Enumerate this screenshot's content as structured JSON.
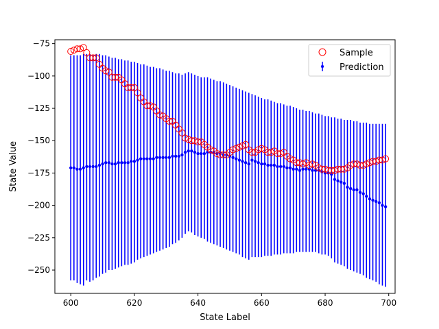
{
  "chart_data": {
    "type": "scatter",
    "title": "",
    "xlabel": "State Label",
    "ylabel": "State Value",
    "xlim": [
      595,
      702
    ],
    "ylim": [
      -268,
      -72
    ],
    "xticks": [
      600,
      620,
      640,
      660,
      680,
      700
    ],
    "yticks": [
      -75,
      -100,
      -125,
      -150,
      -175,
      -200,
      -225,
      -250
    ],
    "grid": false,
    "legend_position": "top-right",
    "legend": [
      "Sample",
      "Prediction"
    ],
    "colors": {
      "sample": "#ff0000",
      "prediction": "#0000ff"
    },
    "series": [
      {
        "name": "Sample",
        "marker": "open-circle",
        "x": [
          600,
          601,
          602,
          603,
          604,
          605,
          606,
          607,
          608,
          609,
          610,
          611,
          612,
          613,
          614,
          615,
          616,
          617,
          618,
          619,
          620,
          621,
          622,
          623,
          624,
          625,
          626,
          627,
          628,
          629,
          630,
          631,
          632,
          633,
          634,
          635,
          636,
          637,
          638,
          639,
          640,
          641,
          642,
          643,
          644,
          645,
          646,
          647,
          648,
          649,
          650,
          651,
          652,
          653,
          654,
          655,
          656,
          657,
          658,
          659,
          660,
          661,
          662,
          663,
          664,
          665,
          666,
          667,
          668,
          669,
          670,
          671,
          672,
          673,
          674,
          675,
          676,
          677,
          678,
          679,
          680,
          681,
          682,
          683,
          684,
          685,
          686,
          687,
          688,
          689,
          690,
          691,
          692,
          693,
          694,
          695,
          696,
          697,
          698,
          699
        ],
        "y": [
          -81,
          -80,
          -79,
          -79,
          -78,
          -82,
          -86,
          -86,
          -86,
          -91,
          -94,
          -96,
          -97,
          -101,
          -101,
          -101,
          -103,
          -106,
          -109,
          -109,
          -109,
          -113,
          -117,
          -120,
          -123,
          -123,
          -124,
          -127,
          -130,
          -131,
          -133,
          -135,
          -135,
          -138,
          -141,
          -144,
          -148,
          -149,
          -150,
          -150,
          -151,
          -151,
          -153,
          -155,
          -157,
          -158,
          -160,
          -161,
          -161,
          -161,
          -159,
          -157,
          -156,
          -155,
          -154,
          -153,
          -157,
          -159,
          -159,
          -157,
          -156,
          -157,
          -159,
          -159,
          -158,
          -160,
          -160,
          -159,
          -162,
          -164,
          -165,
          -167,
          -167,
          -168,
          -167,
          -169,
          -168,
          -169,
          -171,
          -172,
          -172,
          -173,
          -173,
          -173,
          -172,
          -172,
          -172,
          -171,
          -169,
          -168,
          -168,
          -169,
          -169,
          -168,
          -167,
          -166,
          -166,
          -165,
          -165,
          -164
        ]
      },
      {
        "name": "Prediction",
        "marker": "errorbar",
        "x": [
          600,
          601,
          602,
          603,
          604,
          605,
          606,
          607,
          608,
          609,
          610,
          611,
          612,
          613,
          614,
          615,
          616,
          617,
          618,
          619,
          620,
          621,
          622,
          623,
          624,
          625,
          626,
          627,
          628,
          629,
          630,
          631,
          632,
          633,
          634,
          635,
          636,
          637,
          638,
          639,
          640,
          641,
          642,
          643,
          644,
          645,
          646,
          647,
          648,
          649,
          650,
          651,
          652,
          653,
          654,
          655,
          656,
          657,
          658,
          659,
          660,
          661,
          662,
          663,
          664,
          665,
          666,
          667,
          668,
          669,
          670,
          671,
          672,
          673,
          674,
          675,
          676,
          677,
          678,
          679,
          680,
          681,
          682,
          683,
          684,
          685,
          686,
          687,
          688,
          689,
          690,
          691,
          692,
          693,
          694,
          695,
          696,
          697,
          698,
          699
        ],
        "y": [
          -171,
          -171,
          -172,
          -172,
          -171,
          -170,
          -170,
          -170,
          -170,
          -169,
          -168,
          -167,
          -167,
          -168,
          -168,
          -167,
          -167,
          -167,
          -167,
          -166,
          -166,
          -165,
          -164,
          -164,
          -164,
          -164,
          -164,
          -163,
          -163,
          -163,
          -163,
          -163,
          -162,
          -162,
          -162,
          -161,
          -159,
          -158,
          -158,
          -159,
          -160,
          -160,
          -160,
          -159,
          -159,
          -159,
          -160,
          -160,
          -161,
          -161,
          -162,
          -163,
          -164,
          -165,
          -166,
          -167,
          -168,
          -165,
          -166,
          -167,
          -168,
          -168,
          -169,
          -169,
          -169,
          -170,
          -170,
          -170,
          -171,
          -171,
          -172,
          -172,
          -173,
          -172,
          -172,
          -172,
          -173,
          -173,
          -173,
          -174,
          -175,
          -175,
          -176,
          -180,
          -181,
          -182,
          -183,
          -186,
          -187,
          -188,
          -188,
          -190,
          -191,
          -193,
          -195,
          -196,
          -197,
          -198,
          -200,
          -201
        ],
        "err_low": [
          -258,
          -258,
          -260,
          -261,
          -262,
          -258,
          -259,
          -258,
          -256,
          -255,
          -253,
          -252,
          -250,
          -250,
          -249,
          -248,
          -247,
          -246,
          -246,
          -245,
          -244,
          -242,
          -241,
          -240,
          -239,
          -238,
          -237,
          -236,
          -235,
          -234,
          -233,
          -232,
          -230,
          -229,
          -227,
          -225,
          -222,
          -220,
          -221,
          -223,
          -224,
          -225,
          -226,
          -228,
          -229,
          -230,
          -231,
          -232,
          -233,
          -234,
          -235,
          -236,
          -237,
          -238,
          -240,
          -241,
          -242,
          -240,
          -240,
          -240,
          -240,
          -239,
          -239,
          -239,
          -238,
          -238,
          -238,
          -237,
          -237,
          -237,
          -237,
          -236,
          -236,
          -236,
          -236,
          -236,
          -236,
          -236,
          -237,
          -238,
          -238,
          -239,
          -241,
          -244,
          -245,
          -246,
          -247,
          -249,
          -250,
          -251,
          -252,
          -253,
          -254,
          -256,
          -257,
          -258,
          -259,
          -261,
          -262,
          -263
        ],
        "err_high": [
          -84,
          -84,
          -84,
          -84,
          -83,
          -83,
          -83,
          -84,
          -83,
          -83,
          -84,
          -84,
          -85,
          -86,
          -86,
          -87,
          -87,
          -88,
          -88,
          -89,
          -89,
          -90,
          -91,
          -91,
          -92,
          -93,
          -93,
          -94,
          -94,
          -95,
          -96,
          -96,
          -97,
          -98,
          -98,
          -99,
          -98,
          -97,
          -98,
          -99,
          -100,
          -101,
          -101,
          -101,
          -102,
          -103,
          -104,
          -104,
          -105,
          -106,
          -107,
          -108,
          -109,
          -110,
          -111,
          -112,
          -113,
          -114,
          -115,
          -116,
          -117,
          -118,
          -118,
          -119,
          -120,
          -121,
          -121,
          -122,
          -123,
          -123,
          -124,
          -125,
          -126,
          -126,
          -127,
          -127,
          -128,
          -129,
          -129,
          -130,
          -131,
          -131,
          -132,
          -132,
          -133,
          -133,
          -134,
          -134,
          -134,
          -135,
          -135,
          -136,
          -136,
          -136,
          -137,
          -137,
          -137,
          -137,
          -137,
          -137
        ]
      }
    ]
  }
}
